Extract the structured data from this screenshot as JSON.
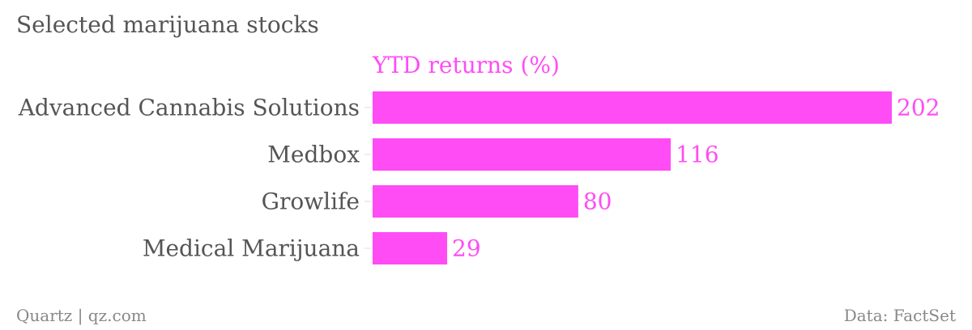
{
  "title": "Selected marijuana stocks",
  "footer": {
    "source_left": "Quartz | qz.com",
    "source_right": "Data: FactSet"
  },
  "colors": {
    "bar": "#ff4cf5",
    "label": "#555555",
    "footer": "#888888",
    "tick": "#dddddd"
  },
  "chart_data": {
    "type": "bar",
    "orientation": "horizontal",
    "categories": [
      "Advanced Cannabis Solutions",
      "Medbox",
      "Growlife",
      "Medical Marijuana"
    ],
    "series": [
      {
        "name": "YTD returns (%)",
        "values": [
          202,
          116,
          80,
          29
        ]
      }
    ],
    "xlim": [
      0,
      202
    ],
    "grid": false,
    "legend": "top"
  }
}
